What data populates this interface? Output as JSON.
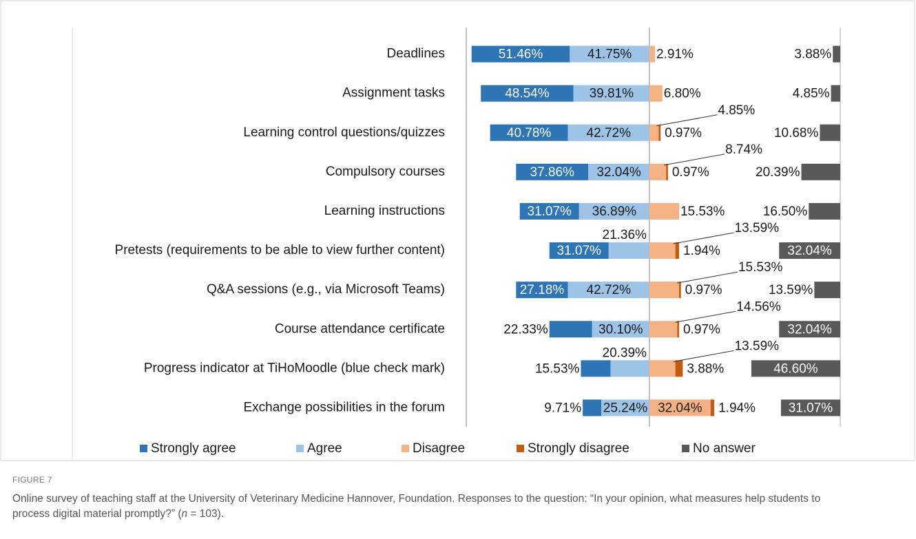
{
  "chart_data": {
    "type": "diverging-bar",
    "categories": [
      "Deadlines",
      "Assignment tasks",
      "Learning control questions/quizzes",
      "Compulsory courses",
      "Learning instructions",
      "Pretests (requirements to be able to view further content)",
      "Q&A sessions (e.g., via Microsoft Teams)",
      "Course attendance certificate",
      "Progress indicator at TiHoMoodle (blue check mark)",
      "Exchange possibilities in the forum"
    ],
    "xlim": [
      -96,
      100
    ],
    "series": [
      {
        "name": "Strongly agree",
        "color": "#2e75b6",
        "side": "left",
        "values": [
          51.46,
          48.54,
          40.78,
          37.86,
          31.07,
          31.07,
          27.18,
          22.33,
          15.53,
          9.71
        ],
        "value_labels": [
          "51.46%",
          "48.54%",
          "40.78%",
          "37.86%",
          "31.07%",
          "31.07%",
          "27.18%",
          "22.33%",
          "15.53%",
          "9.71%"
        ]
      },
      {
        "name": "Agree",
        "color": "#9dc3e6",
        "side": "left",
        "values": [
          41.75,
          39.81,
          42.72,
          32.04,
          36.89,
          21.36,
          42.72,
          30.1,
          20.39,
          25.24
        ],
        "value_labels": [
          "41.75%",
          "39.81%",
          "42.72%",
          "32.04%",
          "36.89%",
          "21.36%",
          "42.72%",
          "30.10%",
          "20.39%",
          "25.24%"
        ]
      },
      {
        "name": "Disagree",
        "color": "#f4b183",
        "side": "right",
        "values": [
          2.91,
          6.8,
          4.85,
          8.74,
          15.53,
          13.59,
          15.53,
          14.56,
          13.59,
          32.04
        ],
        "value_labels": [
          "2.91%",
          "6.80%",
          "4.85%",
          "8.74%",
          "15.53%",
          "13.59%",
          "15.53%",
          "14.56%",
          "13.59%",
          "32.04%"
        ]
      },
      {
        "name": "Strongly disagree",
        "color": "#c55a11",
        "side": "right",
        "values": [
          0,
          0,
          0.97,
          0.97,
          0,
          1.94,
          0.97,
          0.97,
          3.88,
          1.94
        ],
        "value_labels": [
          null,
          null,
          "0.97%",
          "0.97%",
          null,
          "1.94%",
          "0.97%",
          "0.97%",
          "3.88%",
          "1.94%"
        ]
      },
      {
        "name": "No answer",
        "color": "#595959",
        "side": "end",
        "values": [
          3.88,
          4.85,
          10.68,
          20.39,
          16.5,
          32.04,
          13.59,
          32.04,
          46.6,
          31.07
        ],
        "value_labels": [
          "3.88%",
          "4.85%",
          "10.68%",
          "20.39%",
          "16.50%",
          "32.04%",
          "13.59%",
          "32.04%",
          "46.60%",
          "31.07%"
        ]
      }
    ]
  },
  "figure_label": "FIGURE 7",
  "caption": {
    "text": "Online survey of teaching staff at the University of Veterinary Medicine Hannover, Foundation. Responses to the question: “In your opinion, what measures help students to process digital material promptly?” (",
    "n": "n",
    "rest": " = 103)."
  }
}
